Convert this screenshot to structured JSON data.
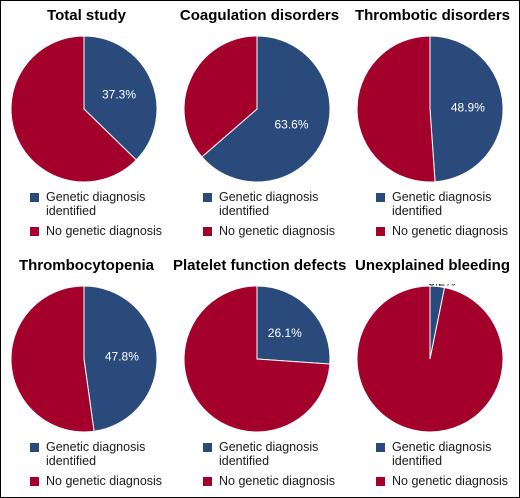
{
  "colors": {
    "genetic": "#2b4a7c",
    "no_genetic": "#a3002b"
  },
  "legend": {
    "genetic_label": "Genetic diagnosis identified",
    "no_genetic_label": "No genetic diagnosis"
  },
  "chart_data": [
    {
      "type": "pie",
      "title": "Total study",
      "labels": [
        "Genetic diagnosis identified",
        "No genetic diagnosis"
      ],
      "values": [
        37.3,
        62.7
      ],
      "value_label": "37.3%"
    },
    {
      "type": "pie",
      "title": "Coagulation disorders",
      "labels": [
        "Genetic diagnosis identified",
        "No genetic diagnosis"
      ],
      "values": [
        63.6,
        36.4
      ],
      "value_label": "63.6%"
    },
    {
      "type": "pie",
      "title": "Thrombotic disorders",
      "labels": [
        "Genetic diagnosis identified",
        "No genetic diagnosis"
      ],
      "values": [
        48.9,
        51.1
      ],
      "value_label": "48.9%"
    },
    {
      "type": "pie",
      "title": "Thrombocytopenia",
      "labels": [
        "Genetic diagnosis identified",
        "No genetic diagnosis"
      ],
      "values": [
        47.8,
        52.2
      ],
      "value_label": "47.8%"
    },
    {
      "type": "pie",
      "title": "Platelet function defects",
      "labels": [
        "Genetic diagnosis identified",
        "No genetic diagnosis"
      ],
      "values": [
        26.1,
        73.9
      ],
      "value_label": "26.1%"
    },
    {
      "type": "pie",
      "title": "Unexplained bleeding",
      "labels": [
        "Genetic diagnosis identified",
        "No genetic diagnosis"
      ],
      "values": [
        3.2,
        96.8
      ],
      "value_label": "3.2%"
    }
  ]
}
